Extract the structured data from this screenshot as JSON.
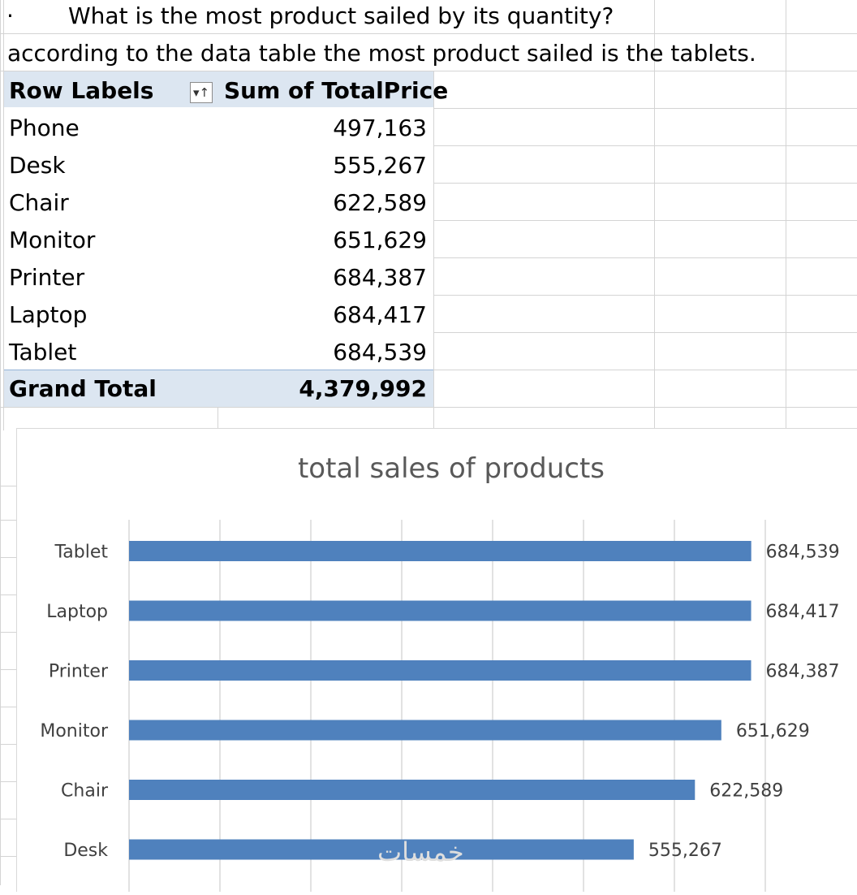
{
  "question": {
    "bullet": "·",
    "text": "What is the most product sailed by its quantity?"
  },
  "answer": "according to the data table the most product sailed is the tablets.",
  "pivot": {
    "header_row_label": "Row Labels",
    "header_value": "Sum of TotalPrice",
    "filter_icon": "sort-filter-icon",
    "rows": [
      {
        "label": "Phone",
        "value": "497,163"
      },
      {
        "label": "Desk",
        "value": "555,267"
      },
      {
        "label": "Chair",
        "value": "622,589"
      },
      {
        "label": "Monitor",
        "value": "651,629"
      },
      {
        "label": "Printer",
        "value": "684,387"
      },
      {
        "label": "Laptop",
        "value": "684,417"
      },
      {
        "label": "Tablet",
        "value": "684,539"
      }
    ],
    "grand_total_label": "Grand Total",
    "grand_total_value": "4,379,992"
  },
  "chart_data": {
    "type": "bar",
    "orientation": "horizontal",
    "title": "total sales of products",
    "categories": [
      "Tablet",
      "Laptop",
      "Printer",
      "Monitor",
      "Chair",
      "Desk"
    ],
    "values": [
      684539,
      684417,
      684387,
      651629,
      622589,
      555267
    ],
    "data_labels": [
      "684,539",
      "684,417",
      "684,387",
      "651,629",
      "622,589",
      "555,267"
    ],
    "xlim": [
      0,
      700000
    ],
    "grid": true,
    "legend": "none",
    "bar_color": "#4f81bd"
  },
  "watermark": "خمسات"
}
